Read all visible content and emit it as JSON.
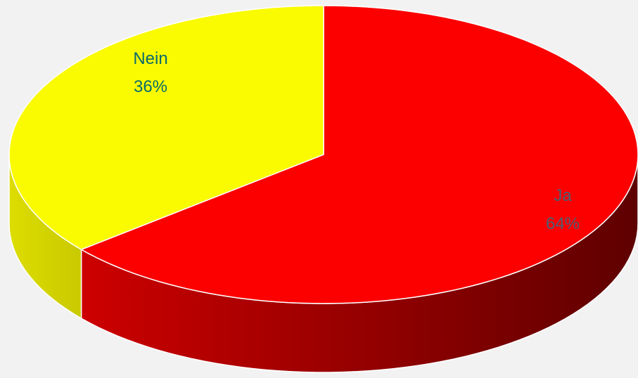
{
  "chart_data": {
    "type": "pie",
    "style": "3d",
    "title": "",
    "slices": [
      {
        "label": "Ja",
        "value": 64,
        "value_label": "64%",
        "color": "#fc0000",
        "side_dark": "#5e0000",
        "side_light": "#cd0000",
        "label_color": "#4b5f73"
      },
      {
        "label": "Nein",
        "value": 36,
        "value_label": "36%",
        "color": "#fafa00",
        "side_dark": "#c9c900",
        "side_light": "#dddd00",
        "label_color": "#0a6b6b"
      }
    ]
  }
}
